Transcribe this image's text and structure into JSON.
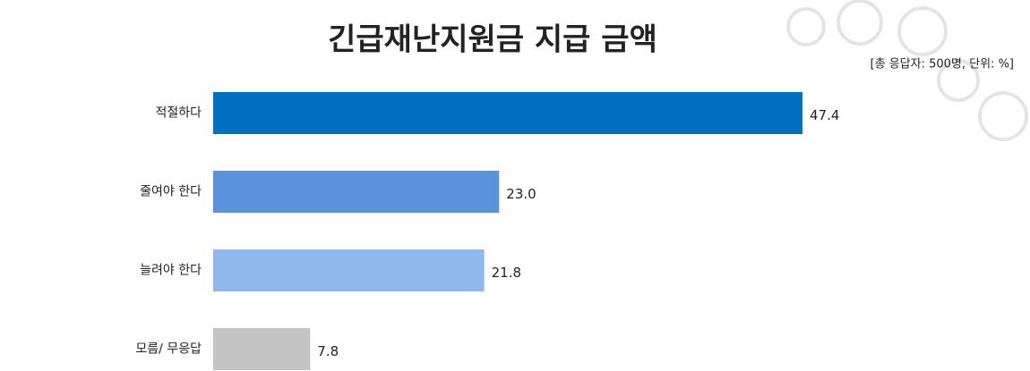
{
  "chart_data": {
    "type": "hbar",
    "title": "긴급재난지원금 지급 금액",
    "subtitle": "[총 응답자: 500명, 단위: %]",
    "categories": [
      "적절하다",
      "줄여야 한다",
      "늘려야 한다",
      "모름/ 무응답"
    ],
    "values": [
      47.4,
      23.0,
      21.8,
      7.8
    ],
    "value_labels": [
      "47.4",
      "23.0",
      "21.8",
      "7.8"
    ],
    "colors": [
      "#0070c0",
      "#5b92dc",
      "#8fb8ec",
      "#c4c4c4"
    ]
  }
}
